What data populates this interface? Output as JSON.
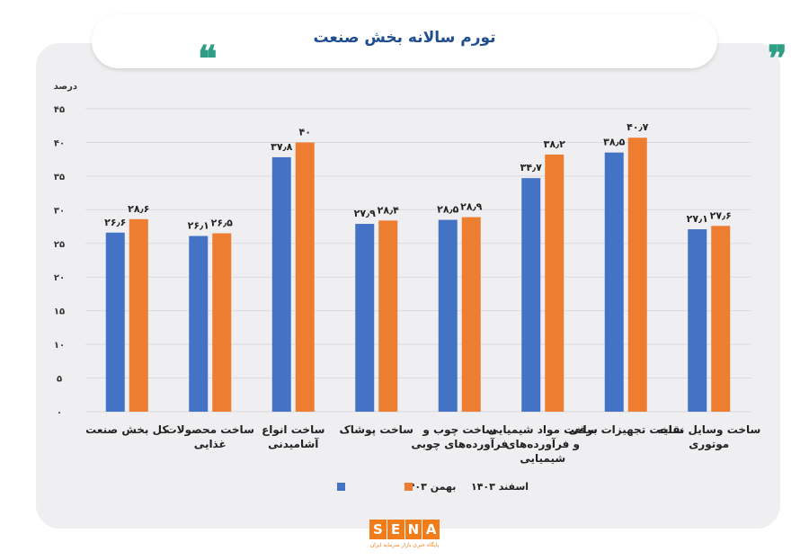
{
  "header": {
    "title": "تورم سالانه بخش صنعت",
    "quote_left": "❝",
    "quote_right": "❞"
  },
  "colors": {
    "series1": "#4472c4",
    "series2": "#ed7d31",
    "accent": "#2f9e86"
  },
  "logo": {
    "letters": [
      "S",
      "E",
      "N",
      "A"
    ],
    "subtitle": "پایگاه خبری بازار سرمایه ایران"
  },
  "chart_data": {
    "type": "bar",
    "title": "تورم سالانه بخش صنعت",
    "ylabel": "درصد",
    "ylim": [
      0,
      45
    ],
    "yticks": [
      0,
      5,
      10,
      15,
      20,
      25,
      30,
      35,
      40,
      45
    ],
    "ytick_labels": [
      "۰",
      "۵",
      "۱۰",
      "۱۵",
      "۲۰",
      "۲۵",
      "۳۰",
      "۳۵",
      "۴۰",
      "۴۵"
    ],
    "grid": true,
    "legend_position": "bottom",
    "categories": [
      [
        "کل بخش صنعت"
      ],
      [
        "ساخت محصولات",
        "غذایی"
      ],
      [
        "ساخت انواع",
        "آشامیدنی"
      ],
      [
        "ساخت پوشاک"
      ],
      [
        "ساخت چوب و",
        "فرآورده‌های چوبی"
      ],
      [
        "ساخت مواد شیمیایی",
        "و فرآورده‌های",
        "شیمیایی"
      ],
      [
        "ساخت تجهیزات برقی"
      ],
      [
        "ساخت وسایل نقلیه",
        "موتوری"
      ]
    ],
    "series": [
      {
        "name": "بهمن ۱۴۰۳",
        "values": [
          26.6,
          26.1,
          37.8,
          27.9,
          28.5,
          34.7,
          38.5,
          27.1
        ],
        "labels": [
          "۲۶٫۶",
          "۲۶٫۱",
          "۳۷٫۸",
          "۲۷٫۹",
          "۲۸٫۵",
          "۳۴٫۷",
          "۳۸٫۵",
          "۲۷٫۱"
        ]
      },
      {
        "name": "اسفند ۱۴۰۳",
        "values": [
          28.6,
          26.5,
          40,
          28.4,
          28.9,
          38.2,
          40.7,
          27.6
        ],
        "labels": [
          "۲۸٫۶",
          "۲۶٫۵",
          "۴۰",
          "۲۸٫۴",
          "۲۸٫۹",
          "۳۸٫۲",
          "۴۰٫۷",
          "۲۷٫۶"
        ]
      }
    ]
  }
}
